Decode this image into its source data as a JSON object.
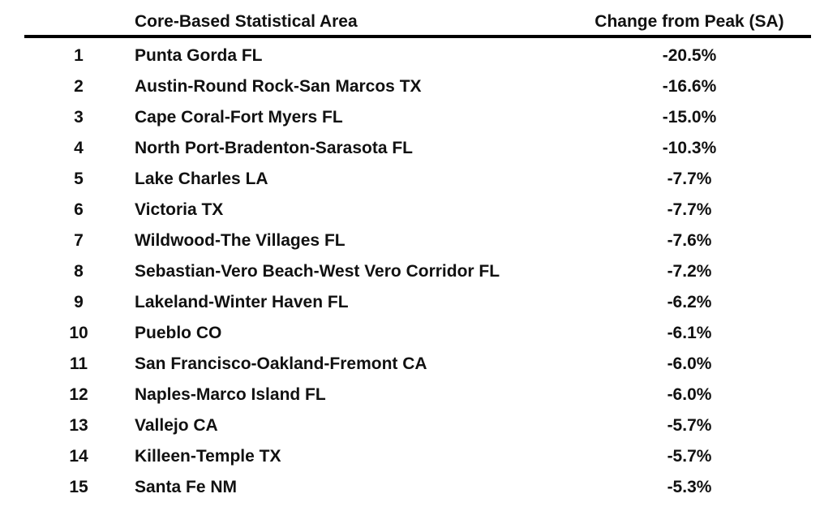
{
  "table": {
    "header": {
      "area": "Core-Based Statistical Area",
      "change": "Change from Peak (SA)"
    },
    "rows": [
      [
        "1",
        "Punta Gorda FL",
        "-20.5%"
      ],
      [
        "2",
        "Austin-Round Rock-San Marcos TX",
        "-16.6%"
      ],
      [
        "3",
        "Cape Coral-Fort Myers FL",
        "-15.0%"
      ],
      [
        "4",
        "North Port-Bradenton-Sarasota FL",
        "-10.3%"
      ],
      [
        "5",
        "Lake Charles LA",
        "-7.7%"
      ],
      [
        "6",
        "Victoria TX",
        "-7.7%"
      ],
      [
        "7",
        "Wildwood-The Villages FL",
        "-7.6%"
      ],
      [
        "8",
        "Sebastian-Vero Beach-West Vero Corridor FL",
        "-7.2%"
      ],
      [
        "9",
        "Lakeland-Winter Haven FL",
        "-6.2%"
      ],
      [
        "10",
        "Pueblo CO",
        "-6.1%"
      ],
      [
        "11",
        "San Francisco-Oakland-Fremont CA",
        "-6.0%"
      ],
      [
        "12",
        "Naples-Marco Island FL",
        "-6.0%"
      ],
      [
        "13",
        "Vallejo CA",
        "-5.7%"
      ],
      [
        "14",
        "Killeen-Temple TX",
        "-5.7%"
      ],
      [
        "15",
        "Santa Fe NM",
        "-5.3%"
      ]
    ]
  }
}
